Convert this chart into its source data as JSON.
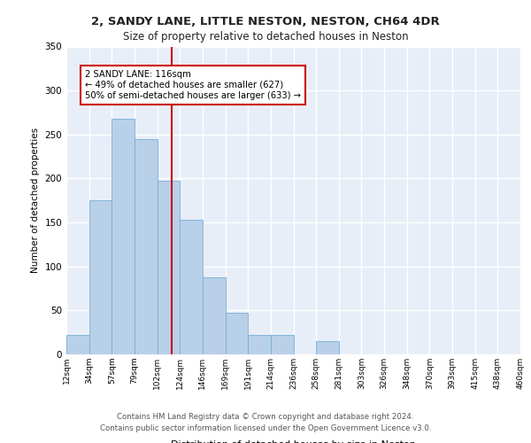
{
  "title1": "2, SANDY LANE, LITTLE NESTON, NESTON, CH64 4DR",
  "title2": "Size of property relative to detached houses in Neston",
  "xlabel": "Distribution of detached houses by size in Neston",
  "ylabel": "Number of detached properties",
  "bar_values": [
    22,
    175,
    268,
    245,
    197,
    153,
    88,
    47,
    22,
    22,
    0,
    15,
    0,
    0,
    0,
    0,
    0,
    0,
    0,
    0
  ],
  "categories": [
    "12sqm",
    "34sqm",
    "57sqm",
    "79sqm",
    "102sqm",
    "124sqm",
    "146sqm",
    "169sqm",
    "191sqm",
    "214sqm",
    "236sqm",
    "258sqm",
    "281sqm",
    "303sqm",
    "326sqm",
    "348sqm",
    "370sqm",
    "393sqm",
    "415sqm",
    "438sqm",
    "460sqm"
  ],
  "bar_color": "#b8d0e8",
  "bar_edge_color": "#7aadd4",
  "bg_color": "#e8eef8",
  "grid_color": "#ffffff",
  "annotation_text": "2 SANDY LANE: 116sqm\n← 49% of detached houses are smaller (627)\n50% of semi-detached houses are larger (633) →",
  "vline_color": "#cc0000",
  "footer_line1": "Contains HM Land Registry data © Crown copyright and database right 2024.",
  "footer_line2": "Contains public sector information licensed under the Open Government Licence v3.0.",
  "ylim": [
    0,
    350
  ],
  "yticks": [
    0,
    50,
    100,
    150,
    200,
    250,
    300,
    350
  ]
}
